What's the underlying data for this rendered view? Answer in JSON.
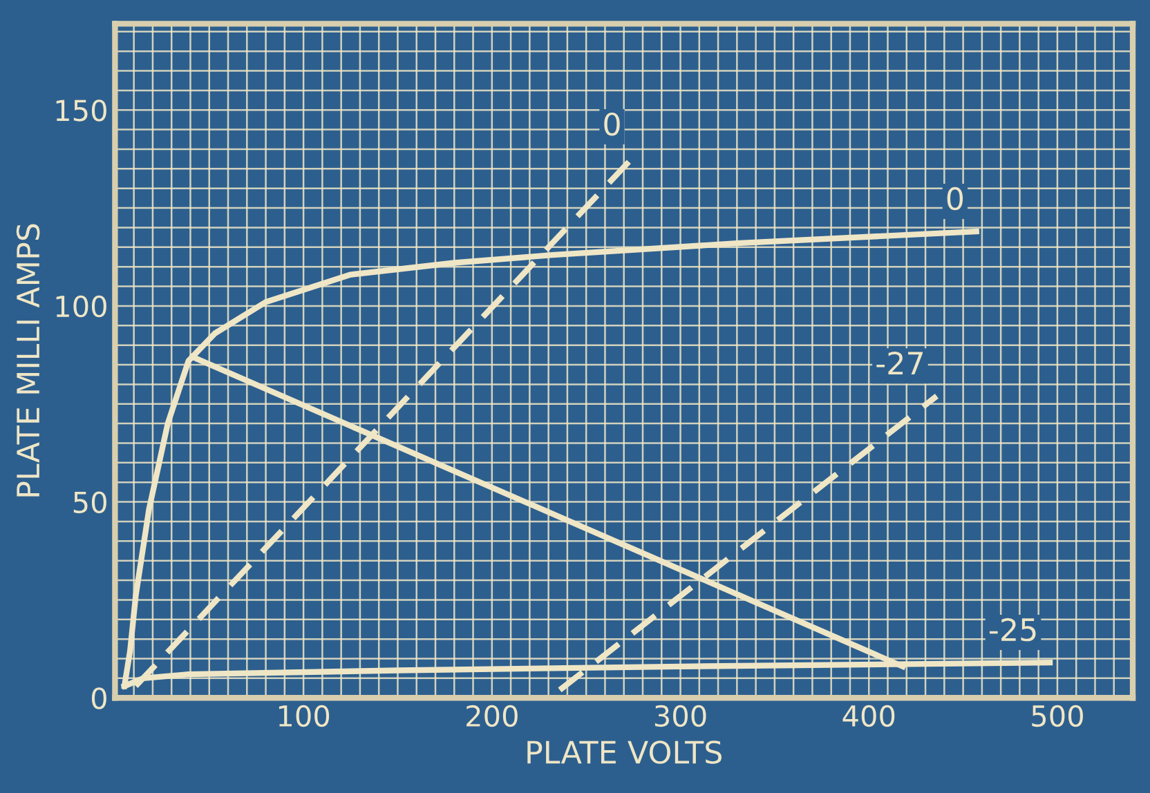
{
  "chart_data": {
    "type": "line",
    "xlabel": "PLATE VOLTS",
    "ylabel": "PLATE MILLI AMPS",
    "xlim": [
      0,
      540
    ],
    "ylim": [
      0,
      172
    ],
    "xticks": [
      {
        "value": 0,
        "label": null
      },
      {
        "value": 10,
        "label": null
      },
      {
        "value": 20,
        "label": null
      },
      {
        "value": 30,
        "label": null
      },
      {
        "value": 40,
        "label": null
      },
      {
        "value": 50,
        "label": null
      },
      {
        "value": 60,
        "label": null
      },
      {
        "value": 70,
        "label": null
      },
      {
        "value": 80,
        "label": null
      },
      {
        "value": 90,
        "label": null
      },
      100,
      {
        "value": 110,
        "label": null
      },
      {
        "value": 120,
        "label": null
      },
      {
        "value": 130,
        "label": null
      },
      {
        "value": 140,
        "label": null
      },
      {
        "value": 150,
        "label": null
      },
      {
        "value": 160,
        "label": null
      },
      {
        "value": 170,
        "label": null
      },
      {
        "value": 180,
        "label": null
      },
      {
        "value": 190,
        "label": null
      },
      200,
      {
        "value": 210,
        "label": null
      },
      {
        "value": 220,
        "label": null
      },
      {
        "value": 230,
        "label": null
      },
      {
        "value": 240,
        "label": null
      },
      {
        "value": 250,
        "label": null
      },
      {
        "value": 260,
        "label": null
      },
      {
        "value": 270,
        "label": null
      },
      {
        "value": 280,
        "label": null
      },
      {
        "value": 290,
        "label": null
      },
      300,
      {
        "value": 310,
        "label": null
      },
      {
        "value": 320,
        "label": null
      },
      {
        "value": 330,
        "label": null
      },
      {
        "value": 340,
        "label": null
      },
      {
        "value": 350,
        "label": null
      },
      {
        "value": 360,
        "label": null
      },
      {
        "value": 370,
        "label": null
      },
      {
        "value": 380,
        "label": null
      },
      {
        "value": 390,
        "label": null
      },
      400,
      {
        "value": 410,
        "label": null
      },
      {
        "value": 420,
        "label": null
      },
      {
        "value": 430,
        "label": null
      },
      {
        "value": 440,
        "label": null
      },
      {
        "value": 450,
        "label": null
      },
      {
        "value": 460,
        "label": null
      },
      {
        "value": 470,
        "label": null
      },
      {
        "value": 480,
        "label": null
      },
      {
        "value": 490,
        "label": null
      },
      500,
      {
        "value": 510,
        "label": null
      },
      {
        "value": 520,
        "label": null
      },
      {
        "value": 530,
        "label": null
      }
    ],
    "yticks": [
      0,
      {
        "value": 5,
        "label": null
      },
      {
        "value": 10,
        "label": null
      },
      {
        "value": 15,
        "label": null
      },
      {
        "value": 20,
        "label": null
      },
      {
        "value": 25,
        "label": null
      },
      {
        "value": 30,
        "label": null
      },
      {
        "value": 35,
        "label": null
      },
      {
        "value": 40,
        "label": null
      },
      {
        "value": 45,
        "label": null
      },
      50,
      {
        "value": 55,
        "label": null
      },
      {
        "value": 60,
        "label": null
      },
      {
        "value": 65,
        "label": null
      },
      {
        "value": 70,
        "label": null
      },
      {
        "value": 75,
        "label": null
      },
      {
        "value": 80,
        "label": null
      },
      {
        "value": 85,
        "label": null
      },
      {
        "value": 90,
        "label": null
      },
      {
        "value": 95,
        "label": null
      },
      100,
      {
        "value": 105,
        "label": null
      },
      {
        "value": 110,
        "label": null
      },
      {
        "value": 115,
        "label": null
      },
      {
        "value": 120,
        "label": null
      },
      {
        "value": 125,
        "label": null
      },
      {
        "value": 130,
        "label": null
      },
      {
        "value": 135,
        "label": null
      },
      {
        "value": 140,
        "label": null
      },
      {
        "value": 145,
        "label": null
      },
      150,
      {
        "value": 155,
        "label": null
      },
      {
        "value": 160,
        "label": null
      },
      {
        "value": 165,
        "label": null
      },
      {
        "value": 170,
        "label": null
      }
    ],
    "grid": true,
    "line_style": "solid",
    "series": [
      {
        "name": "0",
        "color": "#efe6c6",
        "x": [
          5,
          8,
          11,
          18,
          28,
          39,
          53,
          80,
          125,
          180,
          232,
          330,
          457
        ],
        "values": [
          3,
          12,
          26,
          48,
          70,
          86,
          93,
          101,
          108,
          111,
          113,
          116,
          119
        ]
      },
      {
        "name": "-25",
        "color": "#efe6c6",
        "x": [
          5,
          15,
          39,
          150,
          300,
          496
        ],
        "values": [
          3,
          5,
          6,
          7,
          8,
          9
        ]
      },
      {
        "color": "#efe6c6",
        "x": [
          41,
          418
        ],
        "values": [
          87,
          8
        ]
      },
      {
        "name": "0",
        "color": "#efe6c6",
        "line_style": "dashed",
        "x": [
          11,
          275
        ],
        "values": [
          3,
          138
        ]
      },
      {
        "name": "-27",
        "color": "#efe6c6",
        "line_style": "dashed",
        "x": [
          236,
          436
        ],
        "values": [
          2,
          77
        ]
      }
    ]
  }
}
